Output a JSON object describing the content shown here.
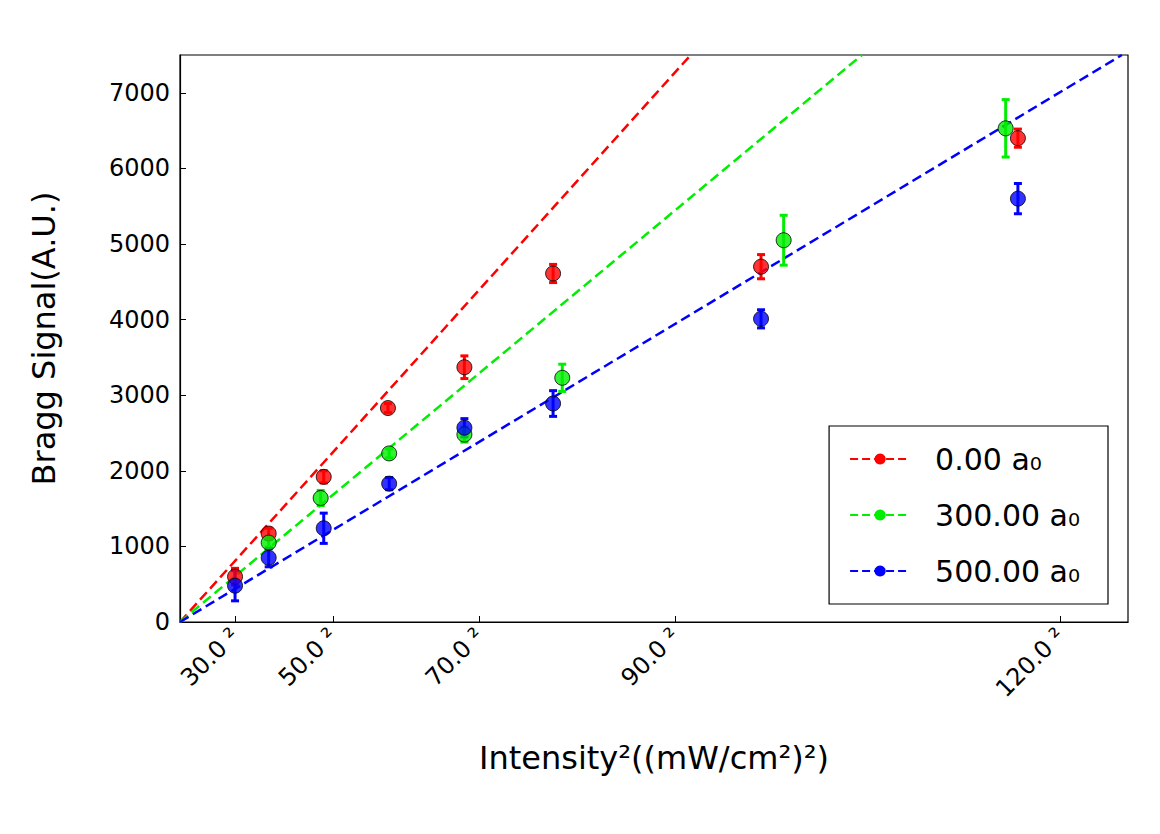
{
  "chart_data": {
    "type": "scatter",
    "x_label": "Intensity²((mW/cm²)²)",
    "y_label": "Bragg Signal(A.U.)",
    "xlim": [
      0,
      15500
    ],
    "xticks": [
      {
        "value": 900,
        "label": "30.0 ²"
      },
      {
        "value": 2500,
        "label": "50.0 ²"
      },
      {
        "value": 4900,
        "label": "70.0 ²"
      },
      {
        "value": 8100,
        "label": "90.0 ²"
      },
      {
        "value": 14400,
        "label": "120.0 ²"
      }
    ],
    "ylim": [
      0,
      7500
    ],
    "yticks": [
      0,
      1000,
      2000,
      3000,
      4000,
      5000,
      6000,
      7000
    ],
    "grid": false,
    "legend": "lower right",
    "marker": "circle",
    "series": [
      {
        "name": "0.00 a₀",
        "color": "#ff0000",
        "line_style": "dashed",
        "x": [
          900,
          1450,
          2350,
          3400,
          4650,
          6100,
          9500,
          13700
        ],
        "values": [
          600,
          1170,
          1920,
          2830,
          3370,
          4610,
          4700,
          6400
        ],
        "errors": [
          110,
          70,
          80,
          60,
          150,
          120,
          160,
          120
        ],
        "fit": {
          "x": [
            0,
            8350
          ],
          "values": [
            0,
            7500
          ]
        }
      },
      {
        "name": "300.00 a₀",
        "color": "#00ee00",
        "line_style": "dashed",
        "x": [
          1450,
          2300,
          3420,
          4650,
          6250,
          9870,
          13500
        ],
        "values": [
          1050,
          1640,
          2230,
          2480,
          3230,
          5050,
          6530
        ],
        "errors": [
          60,
          100,
          60,
          100,
          180,
          330,
          380
        ],
        "fit": {
          "x": [
            0,
            11150
          ],
          "values": [
            0,
            7500
          ]
        }
      },
      {
        "name": "500.00 a₀",
        "color": "#0000ff",
        "line_style": "dashed",
        "x": [
          900,
          1450,
          2350,
          3420,
          4650,
          6100,
          9500,
          13700
        ],
        "values": [
          480,
          850,
          1240,
          1830,
          2570,
          2890,
          4010,
          5600
        ],
        "errors": [
          200,
          120,
          200,
          80,
          120,
          170,
          120,
          200
        ],
        "fit": {
          "x": [
            0,
            15400
          ],
          "values": [
            0,
            7500
          ]
        }
      }
    ]
  }
}
